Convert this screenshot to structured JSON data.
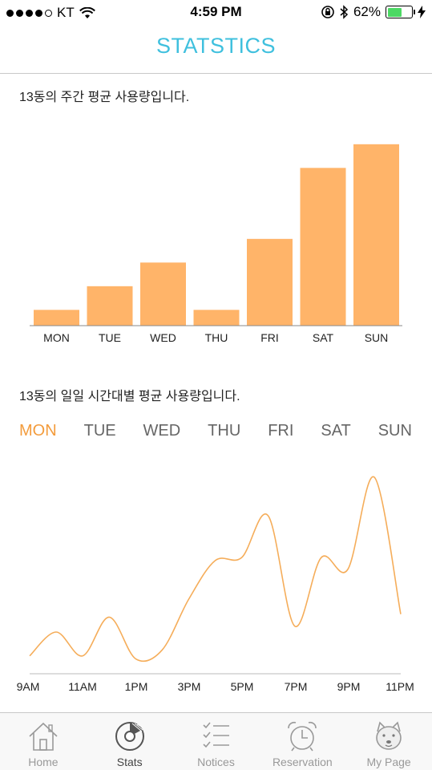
{
  "status": {
    "carrier": "KT",
    "time": "4:59 PM",
    "battery_percent": "62%",
    "battery_level": 0.62
  },
  "nav": {
    "title": "STATSTICS"
  },
  "weekly": {
    "title": "13동의 주간 평균 사용량입니다."
  },
  "daily": {
    "title": "13동의 일일 시간대별 평균 사용량입니다.",
    "tabs": [
      "MON",
      "TUE",
      "WED",
      "THU",
      "FRI",
      "SAT",
      "SUN"
    ],
    "active_tab": 0
  },
  "chart_data": [
    {
      "type": "bar",
      "categories": [
        "MON",
        "TUE",
        "WED",
        "THU",
        "FRI",
        "SAT",
        "SUN"
      ],
      "values": [
        1,
        2.5,
        4,
        1,
        5.5,
        10,
        11.5
      ],
      "ylim": [
        0,
        12
      ],
      "title": "13동의 주간 평균 사용량입니다.",
      "xlabel": "",
      "ylabel": "",
      "color": "#ffb469",
      "grid": false
    },
    {
      "type": "line",
      "x": [
        "9AM",
        "10AM",
        "11AM",
        "12PM",
        "1PM",
        "2PM",
        "3PM",
        "4PM",
        "5PM",
        "6PM",
        "7PM",
        "8PM",
        "9PM",
        "10PM",
        "11PM"
      ],
      "x_tick_labels": [
        "9AM",
        "11AM",
        "1PM",
        "3PM",
        "5PM",
        "7PM",
        "9PM",
        "11PM"
      ],
      "values": [
        1.2,
        2.8,
        1.2,
        3.8,
        1.0,
        1.6,
        5.0,
        7.6,
        7.8,
        10.6,
        3.2,
        7.8,
        7.0,
        13.2,
        4.0
      ],
      "ylim": [
        0,
        14
      ],
      "title": "13동의 일일 시간대별 평균 사용량입니다.",
      "xlabel": "",
      "ylabel": "",
      "color": "#f5ad5a",
      "grid": false
    }
  ],
  "tab_bar": {
    "items": [
      {
        "label": "Home",
        "icon": "home-icon"
      },
      {
        "label": "Stats",
        "icon": "stats-disc-icon"
      },
      {
        "label": "Notices",
        "icon": "checklist-icon"
      },
      {
        "label": "Reservation",
        "icon": "alarm-clock-icon"
      },
      {
        "label": "My Page",
        "icon": "dog-face-icon"
      }
    ],
    "active": 1
  }
}
